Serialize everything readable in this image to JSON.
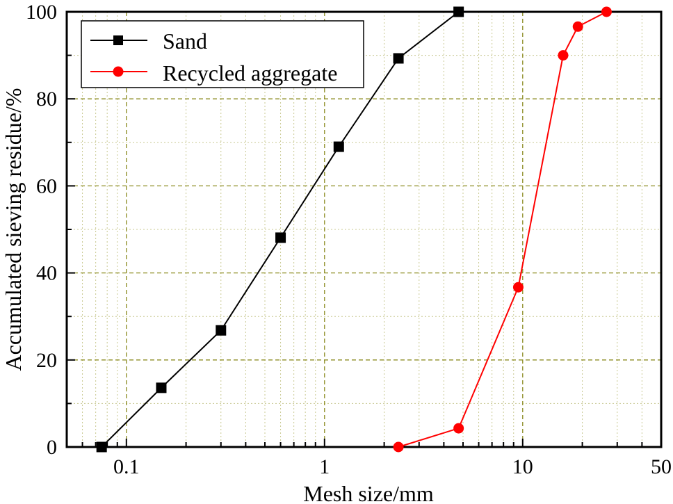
{
  "chart_data": {
    "type": "line",
    "title": "",
    "xlabel": "Mesh size/mm",
    "ylabel": "Accumulated sieving residue/%",
    "xscale": "log",
    "xlim": [
      0.05,
      50
    ],
    "ylim": [
      0,
      100
    ],
    "x_ticks": [
      {
        "value": 0.1,
        "label": "0.1"
      },
      {
        "value": 1,
        "label": "1"
      },
      {
        "value": 10,
        "label": "10"
      },
      {
        "value": 50,
        "label": "50"
      }
    ],
    "y_ticks": [
      {
        "value": 0,
        "label": "0"
      },
      {
        "value": 20,
        "label": "20"
      },
      {
        "value": 40,
        "label": "40"
      },
      {
        "value": 60,
        "label": "60"
      },
      {
        "value": 80,
        "label": "80"
      },
      {
        "value": 100,
        "label": "100"
      }
    ],
    "grid": true,
    "legend_position": "upper left",
    "series": [
      {
        "name": "Sand",
        "color": "#000000",
        "marker": "square",
        "x": [
          0.075,
          0.15,
          0.3,
          0.6,
          1.18,
          2.36,
          4.75
        ],
        "values": [
          0,
          13.6,
          26.8,
          48.1,
          69.0,
          89.3,
          100
        ]
      },
      {
        "name": "Recycled aggregate",
        "color": "#ff0000",
        "marker": "circle",
        "x": [
          2.36,
          4.75,
          9.5,
          16,
          19,
          26.5
        ],
        "values": [
          0,
          4.3,
          36.7,
          90.0,
          96.6,
          100
        ]
      }
    ]
  },
  "colors": {
    "major_grid": "#8a8a1e",
    "minor_grid": "#c8c890",
    "axis": "#000000"
  }
}
